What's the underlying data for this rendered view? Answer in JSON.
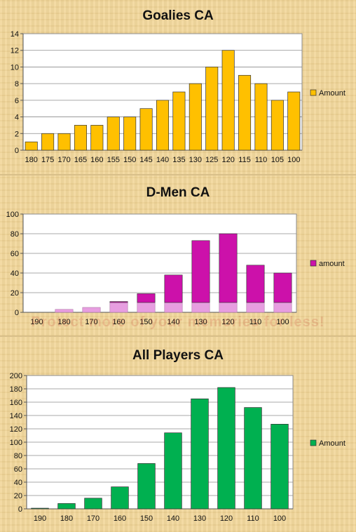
{
  "chart_data": [
    {
      "type": "bar",
      "title": "Goalies CA",
      "categories": [
        "180",
        "175",
        "170",
        "165",
        "160",
        "155",
        "150",
        "145",
        "140",
        "135",
        "130",
        "125",
        "120",
        "115",
        "110",
        "105",
        "100"
      ],
      "series": [
        {
          "name": "Amount",
          "values": [
            1,
            2,
            2,
            3,
            3,
            4,
            4,
            5,
            6,
            7,
            8,
            10,
            12,
            9,
            8,
            6,
            7
          ],
          "color": "#ffc000"
        }
      ],
      "ylim": [
        0,
        14
      ],
      "yticks": [
        0,
        2,
        4,
        6,
        8,
        10,
        12,
        14
      ],
      "legend": "right",
      "grid": true
    },
    {
      "type": "bar",
      "title": "D-Men CA",
      "categories": [
        "190",
        "180",
        "170",
        "160",
        "150",
        "140",
        "130",
        "120",
        "110",
        "100"
      ],
      "series": [
        {
          "name": "amount",
          "values": [
            0,
            3,
            5,
            11,
            19,
            38,
            73,
            80,
            48,
            40
          ],
          "color": "#cc11aa",
          "light_color": "#e79ee0",
          "light_cap": 10
        }
      ],
      "ylim": [
        0,
        100
      ],
      "yticks": [
        0,
        20,
        40,
        60,
        80,
        100
      ],
      "legend": "right",
      "grid": true
    },
    {
      "type": "bar",
      "title": "All Players CA",
      "categories": [
        "190",
        "180",
        "170",
        "160",
        "150",
        "140",
        "130",
        "120",
        "110",
        "100"
      ],
      "series": [
        {
          "name": "Amount",
          "values": [
            1,
            8,
            16,
            33,
            68,
            114,
            165,
            182,
            152,
            127
          ],
          "color": "#00b050"
        }
      ],
      "ylim": [
        0,
        200
      ],
      "yticks": [
        0,
        20,
        40,
        60,
        80,
        100,
        120,
        140,
        160,
        180,
        200
      ],
      "legend": "right",
      "grid": true
    }
  ],
  "watermark": "Protect more of your memories for less!"
}
